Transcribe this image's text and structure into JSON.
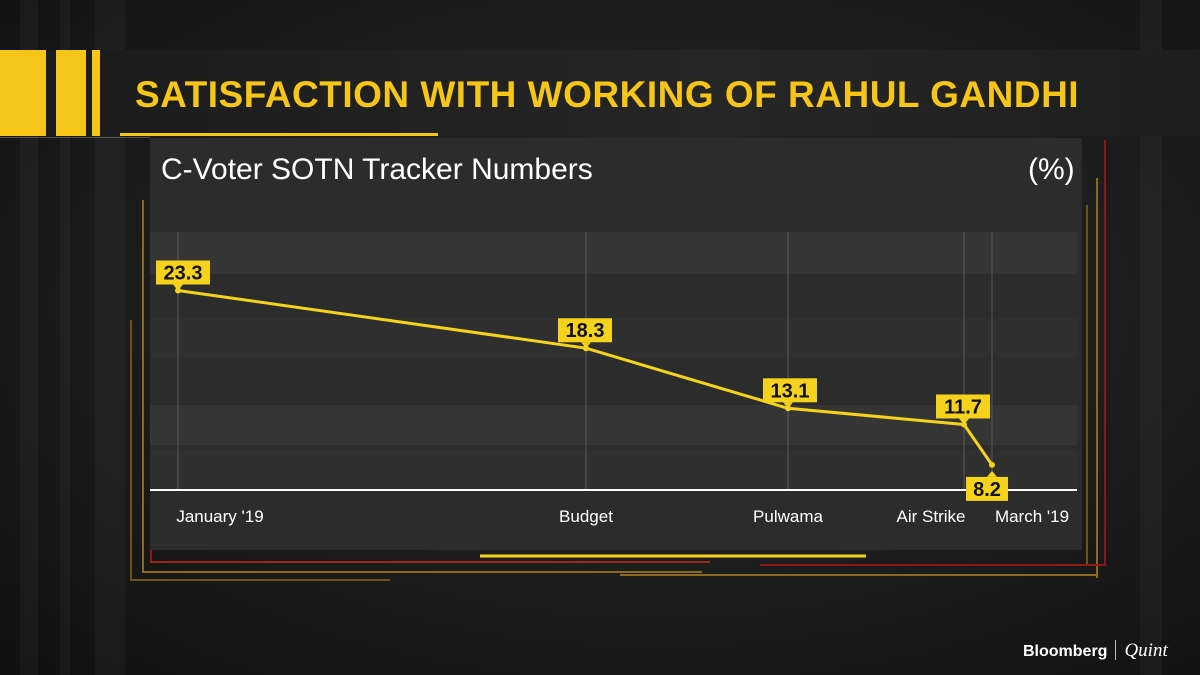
{
  "header": {
    "title": "SATISFACTION WITH WORKING OF RAHUL GANDHI",
    "subtitle": "C-Voter SOTN Tracker Numbers",
    "unit": "(%)"
  },
  "chart_data": {
    "type": "line",
    "categories": [
      "January '19",
      "Budget",
      "Pulwama",
      "Air Strike",
      "March '19"
    ],
    "values": [
      23.3,
      18.3,
      13.1,
      11.7,
      8.2
    ],
    "data_labels": [
      "23.3",
      "18.3",
      "13.1",
      "11.7",
      "8.2"
    ],
    "ylim": [
      5,
      25
    ],
    "grid": false,
    "line_color": "#f5d31c",
    "label_bg": "#f5d31c"
  },
  "brand": {
    "name1": "Bloomberg",
    "name2": "Quint"
  },
  "colors": {
    "accent": "#f5c518",
    "frame_red": "#8a1818",
    "frame_gold": "#8c6a1a"
  }
}
